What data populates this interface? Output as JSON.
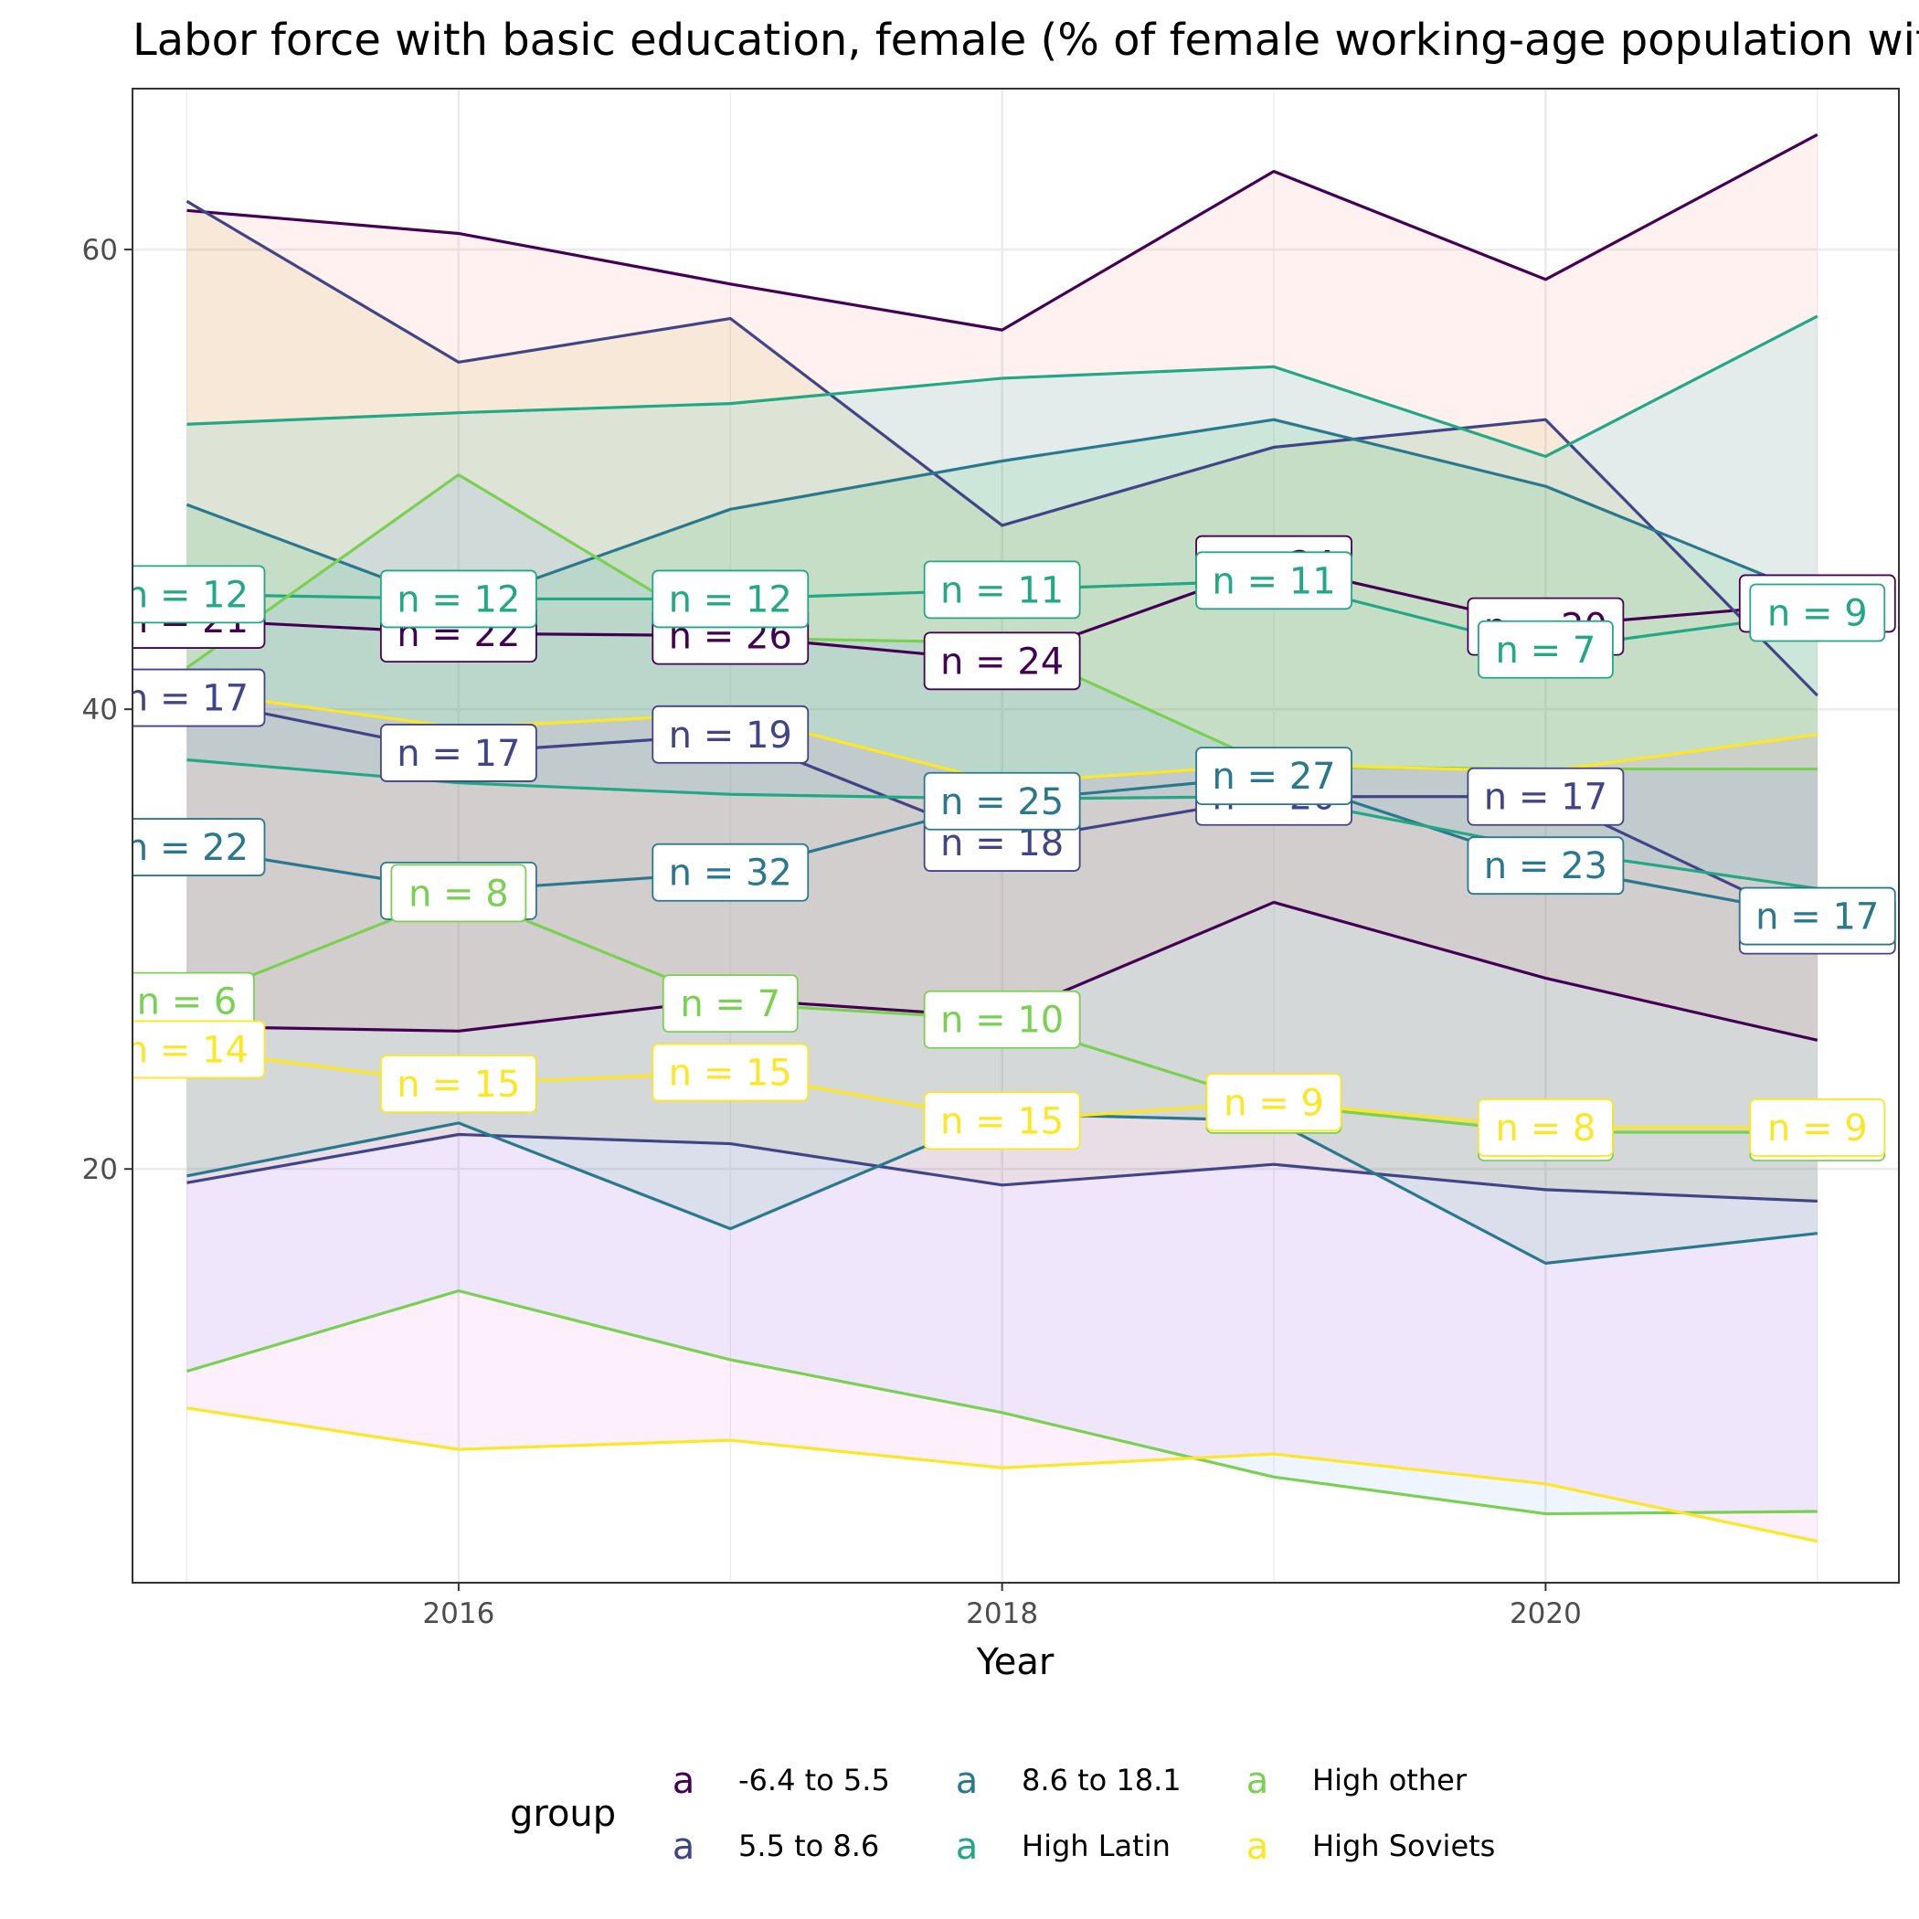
{
  "chart_data": {
    "type": "line",
    "title": "Labor force with basic education, female (% of female working-age population with basic education)",
    "xlabel": "Year",
    "ylabel": "",
    "xlim": [
      2014.8,
      2021.3
    ],
    "ylim": [
      2,
      67
    ],
    "x_ticks": [
      2016,
      2018,
      2020
    ],
    "y_ticks": [
      20,
      40,
      60
    ],
    "x": [
      2015,
      2016,
      2017,
      2018,
      2019,
      2020,
      2021
    ],
    "legend": {
      "title": "group",
      "position": "bottom",
      "key_glyph": "a"
    },
    "series": [
      {
        "name": "-6.4 to 5.5",
        "color": "#440154",
        "ribbon_fill": "#F8766D",
        "mean": [
          43.9,
          43.3,
          43.2,
          42.1,
          46.3,
          43.6,
          44.6
        ],
        "max": [
          61.7,
          60.7,
          58.5,
          56.5,
          63.4,
          58.7,
          65.0
        ],
        "min": [
          26.2,
          26.0,
          27.4,
          26.6,
          31.6,
          28.3,
          25.6
        ],
        "n": [
          21,
          22,
          26,
          24,
          24,
          20,
          19
        ]
      },
      {
        "name": "5.5 to 8.6",
        "color": "#414487",
        "ribbon_fill": "#B79F00",
        "mean": [
          40.5,
          38.1,
          38.9,
          34.2,
          36.2,
          36.2,
          30.6
        ],
        "max": [
          62.1,
          55.1,
          57.0,
          48.0,
          51.4,
          52.6,
          40.6
        ],
        "min": [
          19.4,
          21.5,
          21.1,
          19.3,
          20.2,
          19.1,
          18.6
        ],
        "n": [
          17,
          17,
          19,
          18,
          20,
          17,
          19
        ]
      },
      {
        "name": "8.6 to 18.1",
        "color": "#2A788E",
        "ribbon_fill": "#00BA38",
        "mean": [
          34.0,
          32.1,
          32.9,
          36.0,
          37.1,
          33.2,
          31.0
        ],
        "max": [
          48.9,
          44.5,
          48.7,
          50.8,
          52.6,
          49.7,
          44.9
        ],
        "min": [
          19.7,
          22.0,
          17.4,
          22.4,
          22.1,
          15.9,
          17.2
        ],
        "n": [
          22,
          32,
          32,
          25,
          27,
          23,
          17
        ]
      },
      {
        "name": "High Latin",
        "color": "#22A884",
        "ribbon_fill": "#00BFC4",
        "mean": [
          45.0,
          44.8,
          44.8,
          45.2,
          45.6,
          42.6,
          44.2
        ],
        "max": [
          52.4,
          52.9,
          53.3,
          54.4,
          54.9,
          51.0,
          57.1
        ],
        "min": [
          37.8,
          36.8,
          36.3,
          36.1,
          36.2,
          33.9,
          32.2
        ],
        "n": [
          12,
          12,
          12,
          11,
          11,
          7,
          9
        ]
      },
      {
        "name": "High other",
        "color": "#7AD151",
        "ribbon_fill": "#619CFF",
        "mean": [
          27.3,
          32.0,
          27.2,
          26.5,
          22.8,
          21.6,
          21.6
        ],
        "max": [
          41.8,
          50.2,
          43.1,
          42.9,
          37.5,
          37.4,
          37.4
        ],
        "min": [
          11.2,
          14.7,
          11.7,
          9.4,
          6.6,
          5.0,
          5.1
        ],
        "n": [
          6,
          8,
          7,
          10,
          9,
          8,
          9
        ]
      },
      {
        "name": "High Soviets",
        "color": "#FDE725",
        "ribbon_fill": "#F564E3",
        "mean": [
          25.2,
          23.7,
          24.2,
          22.1,
          22.9,
          21.8,
          21.8
        ],
        "max": [
          40.8,
          39.2,
          39.8,
          36.8,
          37.6,
          37.3,
          38.9
        ],
        "min": [
          9.6,
          7.8,
          8.2,
          7.0,
          7.6,
          6.3,
          3.8
        ],
        "n": [
          14,
          15,
          15,
          15,
          9,
          8,
          9
        ]
      }
    ]
  }
}
